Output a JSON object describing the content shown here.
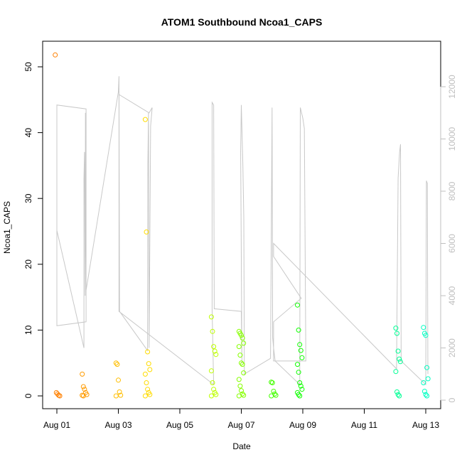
{
  "chart_data": {
    "type": "scatter",
    "title": "ATOM1 Southbound Ncoa1_CAPS",
    "xlabel": "Date",
    "ylabel": "Ncoa1_CAPS",
    "xlim": [
      "2015-08-01",
      "2015-08-13"
    ],
    "ylim": [
      0,
      52
    ],
    "x_ticks": [
      "Aug 01",
      "Aug 03",
      "Aug 05",
      "Aug 07",
      "Aug 09",
      "Aug 11",
      "Aug 13"
    ],
    "y_ticks": [
      0,
      10,
      20,
      30,
      40,
      50
    ],
    "y2_ticks": [
      0,
      2000,
      4000,
      6000,
      8000,
      10000,
      12000
    ],
    "y2lim": [
      0,
      12000
    ],
    "grid": false,
    "colors": {
      "axis": "#000000",
      "secondary_axis": "#bfbfbf",
      "line": "#c8c8c8",
      "point_gradient": [
        "#ff7f00",
        "#ffff00",
        "#00ff00",
        "#00ffcc"
      ]
    },
    "scatter_clusters": [
      {
        "day": 0.02,
        "values": [
          51.8,
          0.5,
          0.3,
          0.1,
          0.0
        ]
      },
      {
        "day": 0.9,
        "values": [
          3.3,
          1.4,
          1.0,
          0.5,
          0.2,
          0.1,
          0.0
        ]
      },
      {
        "day": 2.0,
        "values": [
          5.0,
          4.8,
          2.4,
          0.6,
          0.1,
          0.0
        ]
      },
      {
        "day": 2.95,
        "values": [
          42.0,
          24.9,
          6.7,
          4.9,
          4.0,
          3.3,
          2.0,
          1.0,
          0.5,
          0.2,
          0.0
        ]
      },
      {
        "day": 5.1,
        "values": [
          12.0,
          9.8,
          7.5,
          6.8,
          6.3,
          3.8,
          2.0,
          1.0,
          0.5,
          0.2,
          0.0
        ]
      },
      {
        "day": 6.0,
        "values": [
          9.8,
          9.5,
          9.2,
          8.8,
          8.0,
          7.5,
          6.2,
          5.0,
          4.8,
          3.5,
          2.5,
          1.5,
          0.8,
          0.3,
          0.1,
          0.0
        ]
      },
      {
        "day": 7.05,
        "values": [
          2.1,
          2.0,
          0.7,
          0.3,
          0.1,
          0.0
        ]
      },
      {
        "day": 7.9,
        "values": [
          13.8,
          10.0,
          7.8,
          6.9,
          5.8,
          4.8,
          3.6,
          2.0,
          1.5,
          1.0,
          0.5,
          0.2,
          0.0
        ]
      },
      {
        "day": 11.1,
        "values": [
          10.3,
          9.5,
          6.8,
          5.6,
          5.2,
          3.7,
          0.6,
          0.2,
          0.0
        ]
      },
      {
        "day": 12.0,
        "values": [
          10.4,
          9.5,
          9.2,
          4.3,
          2.6,
          2.0,
          0.7,
          0.2,
          0.0
        ]
      }
    ],
    "secondary_line": [
      [
        0.0,
        6500
      ],
      [
        0.0,
        11300
      ],
      [
        0.95,
        11150
      ],
      [
        0.95,
        3000
      ],
      [
        0.0,
        2850
      ],
      [
        0.0,
        6500
      ],
      [
        0.88,
        2000
      ],
      [
        0.88,
        8500
      ],
      [
        0.9,
        9500
      ],
      [
        0.92,
        4000
      ],
      [
        0.93,
        11000
      ],
      [
        0.95,
        4200
      ],
      [
        2.0,
        11800
      ],
      [
        2.02,
        12400
      ],
      [
        2.04,
        3400
      ],
      [
        2.95,
        1900
      ],
      [
        2.96,
        9000
      ],
      [
        2.98,
        11000
      ],
      [
        3.0,
        2000
      ],
      [
        3.05,
        10500
      ],
      [
        3.1,
        11200
      ],
      [
        3.0,
        11000
      ],
      [
        2.02,
        11700
      ],
      [
        2.02,
        3400
      ],
      [
        5.1,
        600
      ],
      [
        5.05,
        3500
      ],
      [
        5.05,
        11400
      ],
      [
        5.1,
        11300
      ],
      [
        5.12,
        3500
      ],
      [
        6.0,
        3400
      ],
      [
        6.02,
        1400
      ],
      [
        5.98,
        9500
      ],
      [
        6.0,
        11300
      ],
      [
        6.05,
        9000
      ],
      [
        6.08,
        7000
      ],
      [
        6.1,
        1000
      ],
      [
        6.95,
        1600
      ],
      [
        7.0,
        11200
      ],
      [
        7.02,
        2400
      ],
      [
        7.05,
        2000
      ],
      [
        7.1,
        1500
      ],
      [
        7.9,
        600
      ],
      [
        7.92,
        11200
      ],
      [
        8.0,
        10800
      ],
      [
        8.05,
        10400
      ],
      [
        8.1,
        1500
      ],
      [
        7.05,
        1500
      ],
      [
        7.05,
        3000
      ],
      [
        7.95,
        3900
      ],
      [
        7.05,
        5500
      ],
      [
        7.05,
        6000
      ],
      [
        11.05,
        1200
      ],
      [
        11.1,
        8500
      ],
      [
        11.15,
        9500
      ],
      [
        11.18,
        9800
      ],
      [
        11.2,
        1500
      ],
      [
        12.0,
        600
      ],
      [
        12.02,
        8400
      ],
      [
        12.05,
        8300
      ],
      [
        12.07,
        1000
      ]
    ]
  }
}
